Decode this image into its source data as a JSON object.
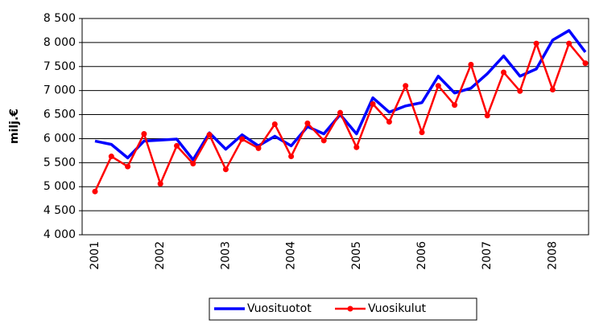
{
  "chart_data": {
    "type": "line",
    "y_label": "milj.€",
    "categories": [
      "2001",
      null,
      null,
      null,
      "2002",
      null,
      null,
      null,
      "2003",
      null,
      null,
      null,
      "2004",
      null,
      null,
      null,
      "2005",
      null,
      null,
      null,
      "2006",
      null,
      null,
      null,
      "2007",
      null,
      null,
      null,
      "2008",
      null,
      null
    ],
    "series": [
      {
        "name": "Vuosituotot",
        "color": "#0000ff",
        "values": [
          5950,
          5880,
          5600,
          5950,
          5970,
          5990,
          5560,
          6120,
          5780,
          6080,
          5850,
          6050,
          5850,
          6250,
          6100,
          6500,
          6100,
          6850,
          6550,
          6680,
          6750,
          7300,
          6950,
          7050,
          7350,
          7720,
          7300,
          7450,
          8050,
          8250,
          7800
        ]
      },
      {
        "name": "Vuosikulut",
        "color": "#ff0000",
        "values": [
          4900,
          5630,
          5420,
          6100,
          5060,
          5850,
          5480,
          6080,
          5360,
          5990,
          5800,
          6300,
          5630,
          6320,
          5960,
          6540,
          5820,
          6720,
          6350,
          7100,
          6130,
          7100,
          6700,
          7540,
          6480,
          7380,
          6990,
          7980,
          7020,
          7980,
          7570
        ]
      }
    ],
    "ylim": [
      4000,
      8500
    ],
    "yticks": [
      {
        "value": 4000,
        "label": "4 000"
      },
      {
        "value": 4500,
        "label": "4 500"
      },
      {
        "value": 5000,
        "label": "5 000"
      },
      {
        "value": 5500,
        "label": "5 500"
      },
      {
        "value": 6000,
        "label": "6 000"
      },
      {
        "value": 6500,
        "label": "6 500"
      },
      {
        "value": 7000,
        "label": "7 000"
      },
      {
        "value": 7500,
        "label": "7 500"
      },
      {
        "value": 8000,
        "label": "8 000"
      },
      {
        "value": 8500,
        "label": "8 500"
      }
    ],
    "grid": true,
    "legend": "bottom"
  }
}
